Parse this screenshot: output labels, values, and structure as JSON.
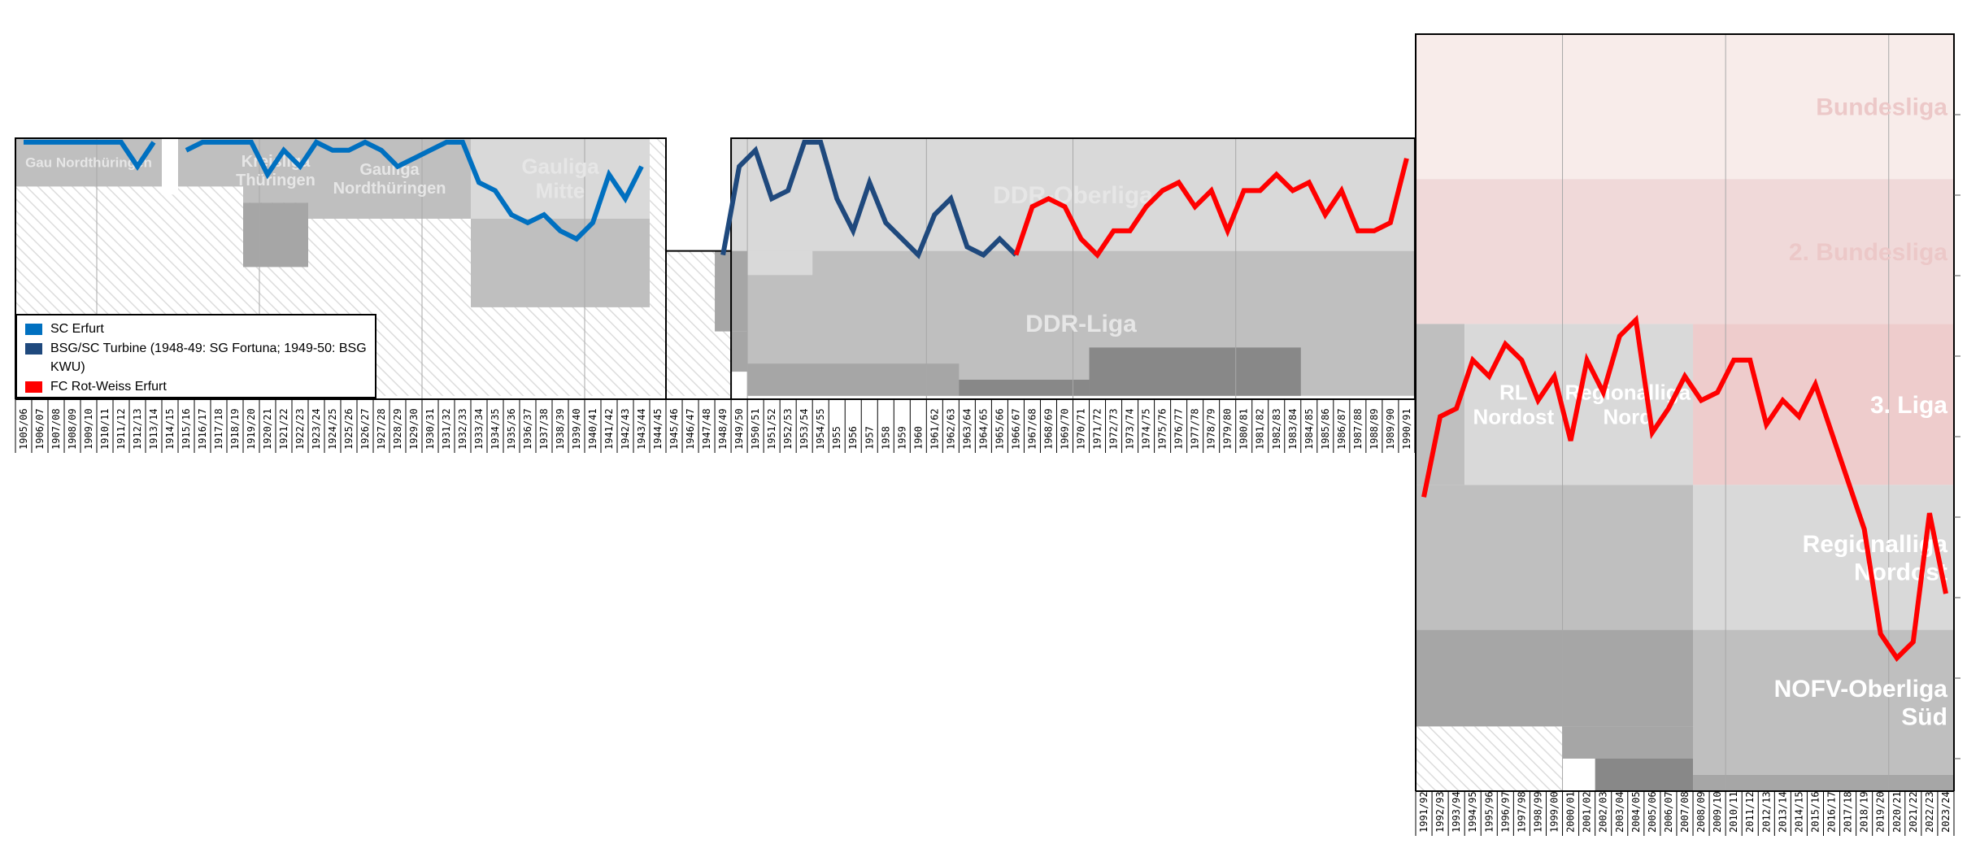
{
  "chart_data": {
    "type": "line",
    "title": "",
    "y_inverted": true,
    "y_ticks": [
      10,
      20,
      30,
      40,
      50,
      60,
      70,
      80,
      90
    ],
    "grid": "vertical every decade",
    "legend": {
      "position": "bottom-left",
      "items": [
        {
          "label": "SC Erfurt",
          "color": "#0070c0"
        },
        {
          "label": "BSG/SC Turbine (1948-49: SG Fortuna; 1949-50: BSG KWU)",
          "color": "#1f497d"
        },
        {
          "label": "FC Rot-Weiss Erfurt",
          "color": "#ff0000"
        }
      ]
    },
    "panels": [
      {
        "seasons": [
          "1905/06",
          "1906/07",
          "1907/08",
          "1908/09",
          "1909/10",
          "1910/11",
          "1911/12",
          "1912/13",
          "1913/14",
          "1914/15",
          "1915/16",
          "1916/17",
          "1917/18",
          "1918/19",
          "1919/20",
          "1920/21",
          "1921/22",
          "1922/23",
          "1923/24",
          "1924/25",
          "1925/26",
          "1926/27",
          "1927/28",
          "1928/29",
          "1929/30",
          "1930/31",
          "1931/32",
          "1932/33",
          "1933/34",
          "1934/35",
          "1935/36",
          "1936/37",
          "1937/38",
          "1938/39",
          "1939/40",
          "1940/41",
          "1941/42",
          "1942/43",
          "1943/44",
          "1944/45"
        ],
        "gridlines": [
          "1910/11",
          "1920/21",
          "1930/31",
          "1940/41"
        ],
        "hatched": [
          {
            "from": "1905/06",
            "to": "1944/45",
            "rank_top": 0,
            "rank_bottom": 32
          }
        ],
        "leagues": [
          {
            "label": [
              "Gau Nordthüringen"
            ],
            "from": "1905/06",
            "to": "1913/14",
            "rank_top": 0,
            "rank_bottom": 6,
            "color": "#bfbfbf"
          },
          {
            "label": [],
            "from": "1914/15",
            "to": "1914/15",
            "rank_top": 0,
            "rank_bottom": 7,
            "color": "#ffffff"
          },
          {
            "label": [],
            "from": "1915/16",
            "to": "1918/19",
            "rank_top": 0,
            "rank_bottom": 6,
            "color": "#bfbfbf"
          },
          {
            "label": [
              "Kreisliga",
              "Thüringen"
            ],
            "from": "1919/20",
            "to": "1922/23",
            "rank_top": 0,
            "rank_bottom": 8,
            "color": "#bfbfbf"
          },
          {
            "label": [],
            "from": "1919/20",
            "to": "1922/23",
            "rank_top": 8,
            "rank_bottom": 16,
            "color": "#a6a6a6"
          },
          {
            "label": [
              "Gauliga",
              "Nordthüringen"
            ],
            "from": "1923/24",
            "to": "1932/33",
            "rank_top": 0,
            "rank_bottom": 10,
            "color": "#bfbfbf"
          },
          {
            "label": [
              "Gauliga",
              "Mitte"
            ],
            "from": "1933/34",
            "to": "1943/44",
            "rank_top": 0,
            "rank_bottom": 10,
            "color": "#d9d9d9"
          },
          {
            "label": [],
            "from": "1933/34",
            "to": "1943/44",
            "rank_top": 10,
            "rank_bottom": 21,
            "color": "#bfbfbf"
          }
        ]
      },
      {
        "seasons": [
          "1945/46",
          "1946/47",
          "1947/48",
          "1948/49",
          "1949/50",
          "1950/51",
          "1951/52",
          "1952/53",
          "1953/54",
          "1954/55",
          "1955",
          "1956",
          "1957",
          "1958",
          "1959",
          "1960",
          "1961/62",
          "1962/63",
          "1963/64",
          "1964/65",
          "1965/66",
          "1966/67",
          "1967/68",
          "1968/69",
          "1969/70",
          "1970/71",
          "1971/72",
          "1972/73",
          "1973/74",
          "1974/75",
          "1975/76",
          "1976/77",
          "1977/78",
          "1978/79",
          "1979/80",
          "1980/81",
          "1981/82",
          "1982/83",
          "1983/84",
          "1984/85",
          "1985/86",
          "1986/87",
          "1987/88",
          "1988/89",
          "1989/90",
          "1990/91"
        ],
        "gridlines": [
          "1950/51",
          "1961/62",
          "1970/71",
          "1980/81"
        ],
        "hatched": [
          {
            "from": "1945/46",
            "to": "1948/49",
            "rank_top": 14,
            "rank_bottom": 32
          }
        ],
        "leagues": [
          {
            "label": [
              "DDR-Oberliga"
            ],
            "from": "1949/50",
            "to": "1990/91",
            "rank_top": 0,
            "rank_bottom": 14,
            "color": "#d9d9d9"
          },
          {
            "label": [
              "DDR-Liga"
            ],
            "from": "1950/51",
            "to": "1990/91",
            "rank_top": 14,
            "rank_bottom": 32,
            "color": "#bfbfbf"
          },
          {
            "label": [],
            "from": "1948/49",
            "to": "1949/50",
            "rank_top": 14,
            "rank_bottom": 24,
            "color": "#a6a6a6"
          },
          {
            "label": [],
            "from": "1949/50",
            "to": "1949/50",
            "rank_top": 24,
            "rank_bottom": 29,
            "color": "#a6a6a6"
          },
          {
            "label": [],
            "from": "1950/51",
            "to": "1953/54",
            "rank_top": 14,
            "rank_bottom": 17,
            "color": "#d9d9d9"
          },
          {
            "label": [],
            "from": "1950/51",
            "to": "1962/63",
            "rank_top": 28,
            "rank_bottom": 32,
            "color": "#a6a6a6"
          },
          {
            "label": [],
            "from": "1963/64",
            "to": "1970/71",
            "rank_top": 30,
            "rank_bottom": 32,
            "color": "#888888"
          },
          {
            "label": [],
            "from": "1971/72",
            "to": "1983/84",
            "rank_top": 26,
            "rank_bottom": 32,
            "color": "#888888"
          }
        ]
      },
      {
        "seasons": [
          "1991/92",
          "1992/93",
          "1993/94",
          "1994/95",
          "1995/96",
          "1996/97",
          "1997/98",
          "1998/99",
          "1999/00",
          "2000/01",
          "2001/02",
          "2002/03",
          "2003/04",
          "2004/05",
          "2005/06",
          "2006/07",
          "2007/08",
          "2008/09",
          "2009/10",
          "2010/11",
          "2011/12",
          "2012/13",
          "2013/14",
          "2014/15",
          "2015/16",
          "2016/17",
          "2017/18",
          "2018/19",
          "2019/20",
          "2020/21",
          "2021/22",
          "2022/23",
          "2023/24"
        ],
        "gridlines": [
          "2000/01",
          "2010/11",
          "2020/21"
        ],
        "hatched": [
          {
            "from": "1991/92",
            "to": "1999/00",
            "rank_top": 86,
            "rank_bottom": 94
          }
        ],
        "leagues": [
          {
            "label": [
              "Bundesliga"
            ],
            "from": "1991/92",
            "to": "2023/24",
            "rank_top": 0,
            "rank_bottom": 18,
            "color": "#f8ecea"
          },
          {
            "label": [
              "2. Bundesliga"
            ],
            "from": "1991/92",
            "to": "2023/24",
            "rank_top": 18,
            "rank_bottom": 36,
            "color": "#f0d9d9"
          },
          {
            "label": [],
            "from": "1991/92",
            "to": "1993/94",
            "rank_top": 36,
            "rank_bottom": 56,
            "color": "#bfbfbf"
          },
          {
            "label": [
              "RL",
              "Nordost"
            ],
            "from": "1994/95",
            "to": "1999/00",
            "rank_top": 36,
            "rank_bottom": 56,
            "color": "#d9d9d9"
          },
          {
            "label": [
              "Regionalliga",
              "Nord"
            ],
            "from": "2000/01",
            "to": "2007/08",
            "rank_top": 36,
            "rank_bottom": 56,
            "color": "#d9d9d9"
          },
          {
            "label": [
              "3. Liga"
            ],
            "from": "2008/09",
            "to": "2023/24",
            "rank_top": 36,
            "rank_bottom": 56,
            "color": "#eecccc"
          },
          {
            "label": [],
            "from": "1991/92",
            "to": "2007/08",
            "rank_top": 56,
            "rank_bottom": 74,
            "color": "#bfbfbf"
          },
          {
            "label": [],
            "from": "1991/92",
            "to": "2007/08",
            "rank_top": 74,
            "rank_bottom": 86,
            "color": "#a6a6a6"
          },
          {
            "label": [],
            "from": "2000/01",
            "to": "2007/08",
            "rank_top": 86,
            "rank_bottom": 90,
            "color": "#a6a6a6"
          },
          {
            "label": [],
            "from": "2002/03",
            "to": "2007/08",
            "rank_top": 90,
            "rank_bottom": 94,
            "color": "#888888"
          },
          {
            "label": [
              "Regionalliga",
              "Nordost"
            ],
            "from": "2008/09",
            "to": "2023/24",
            "rank_top": 56,
            "rank_bottom": 74,
            "color": "#d9d9d9"
          },
          {
            "label": [
              "NOFV-Oberliga",
              "Süd"
            ],
            "from": "2008/09",
            "to": "2023/24",
            "rank_top": 74,
            "rank_bottom": 92,
            "color": "#bfbfbf"
          },
          {
            "label": [],
            "from": "2008/09",
            "to": "2023/24",
            "rank_top": 92,
            "rank_bottom": 94,
            "color": "#a6a6a6"
          }
        ]
      }
    ],
    "series": [
      {
        "name": "SC Erfurt",
        "color": "#0070c0",
        "panel": 0,
        "start": "1905/06",
        "values": [
          1,
          1,
          1,
          1,
          1,
          1,
          1,
          4,
          1,
          null,
          2,
          1,
          1,
          1,
          1,
          5,
          2,
          4,
          1,
          2,
          2,
          1,
          2,
          4,
          3,
          2,
          1,
          1,
          6,
          7,
          10,
          11,
          10,
          12,
          13,
          11,
          5,
          8,
          4,
          null
        ]
      },
      {
        "name": "BSG/SC Turbine (1948-49: SG Fortuna; 1949-50: BSG KWU)",
        "color": "#1f497d",
        "panel": 1,
        "start": "1948/49",
        "values": [
          15,
          4,
          2,
          8,
          7,
          1,
          1,
          8,
          12,
          6,
          11,
          13,
          15,
          10,
          8,
          14,
          15,
          13,
          15
        ]
      },
      {
        "name": "FC Rot-Weiss Erfurt",
        "color": "#ff0000",
        "panel": 1,
        "start": "1966/67",
        "values": [
          15,
          9,
          8,
          9,
          13,
          15,
          12,
          12,
          9,
          7,
          6,
          9,
          7,
          12,
          7,
          7,
          5,
          7,
          6,
          10,
          7,
          12,
          12,
          11,
          3
        ]
      },
      {
        "name": "FC Rot-Weiss Erfurt",
        "color": "#ff0000",
        "panel": 2,
        "start": "1991/92",
        "values": [
          58,
          48,
          47,
          41,
          43,
          39,
          41,
          46,
          43,
          51,
          41,
          45,
          38,
          36,
          50,
          47,
          43,
          46,
          45,
          41,
          41,
          49,
          46,
          48,
          44,
          50,
          56,
          62,
          75,
          78,
          76,
          60,
          70
        ]
      }
    ]
  }
}
